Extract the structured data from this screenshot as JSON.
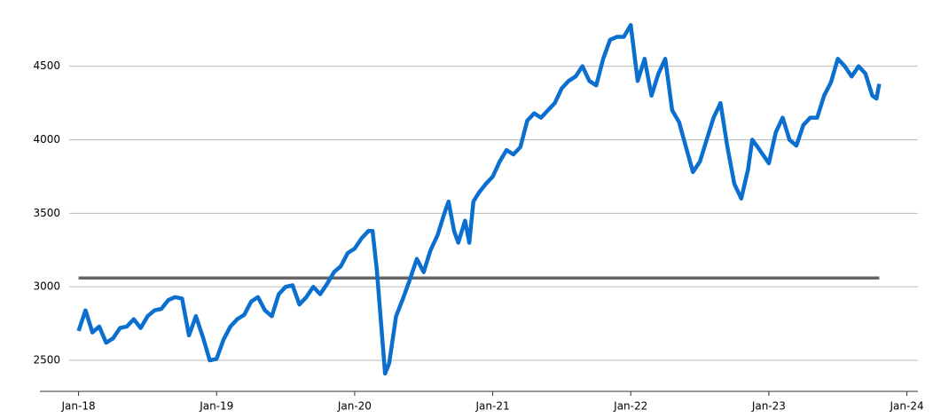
{
  "chart_data": {
    "type": "line",
    "x": [
      2018.0,
      2018.05,
      2018.1,
      2018.15,
      2018.2,
      2018.25,
      2018.3,
      2018.35,
      2018.4,
      2018.45,
      2018.5,
      2018.55,
      2018.6,
      2018.65,
      2018.7,
      2018.75,
      2018.8,
      2018.85,
      2018.9,
      2018.95,
      2019.0,
      2019.05,
      2019.1,
      2019.15,
      2019.2,
      2019.25,
      2019.3,
      2019.35,
      2019.4,
      2019.45,
      2019.5,
      2019.55,
      2019.6,
      2019.65,
      2019.7,
      2019.75,
      2019.8,
      2019.85,
      2019.9,
      2019.95,
      2020.0,
      2020.05,
      2020.1,
      2020.13,
      2020.16,
      2020.22,
      2020.25,
      2020.3,
      2020.35,
      2020.4,
      2020.45,
      2020.5,
      2020.55,
      2020.6,
      2020.65,
      2020.68,
      2020.72,
      2020.75,
      2020.8,
      2020.83,
      2020.86,
      2020.9,
      2020.95,
      2021.0,
      2021.05,
      2021.1,
      2021.15,
      2021.2,
      2021.25,
      2021.3,
      2021.35,
      2021.4,
      2021.45,
      2021.5,
      2021.55,
      2021.6,
      2021.65,
      2021.7,
      2021.75,
      2021.8,
      2021.85,
      2021.9,
      2021.95,
      2022.0,
      2022.05,
      2022.1,
      2022.15,
      2022.2,
      2022.25,
      2022.3,
      2022.35,
      2022.4,
      2022.45,
      2022.5,
      2022.55,
      2022.6,
      2022.65,
      2022.7,
      2022.75,
      2022.8,
      2022.85,
      2022.88,
      2022.92,
      2023.0,
      2023.05,
      2023.1,
      2023.15,
      2023.2,
      2023.25,
      2023.3,
      2023.35,
      2023.4,
      2023.45,
      2023.5,
      2023.55,
      2023.6,
      2023.65,
      2023.7,
      2023.75,
      2023.78,
      2023.8
    ],
    "series": [
      {
        "color": "#0a6fcf",
        "values": [
          2700,
          2840,
          2690,
          2730,
          2620,
          2650,
          2720,
          2730,
          2780,
          2720,
          2800,
          2840,
          2850,
          2910,
          2930,
          2920,
          2670,
          2800,
          2660,
          2500,
          2510,
          2640,
          2730,
          2780,
          2810,
          2900,
          2930,
          2840,
          2800,
          2950,
          3000,
          3010,
          2880,
          2930,
          3000,
          2950,
          3020,
          3100,
          3140,
          3230,
          3260,
          3330,
          3380,
          3380,
          3120,
          2410,
          2480,
          2800,
          2920,
          3050,
          3190,
          3100,
          3250,
          3350,
          3500,
          3580,
          3380,
          3300,
          3450,
          3300,
          3580,
          3640,
          3700,
          3750,
          3850,
          3930,
          3900,
          3950,
          4130,
          4180,
          4150,
          4200,
          4250,
          4350,
          4400,
          4430,
          4500,
          4400,
          4370,
          4550,
          4680,
          4700,
          4700,
          4780,
          4400,
          4550,
          4300,
          4450,
          4550,
          4200,
          4120,
          3950,
          3780,
          3850,
          4000,
          4150,
          4250,
          3950,
          3700,
          3600,
          3800,
          4000,
          3950,
          3840,
          4050,
          4150,
          4000,
          3960,
          4100,
          4150,
          4150,
          4300,
          4390,
          4550,
          4500,
          4430,
          4500,
          4450,
          4300,
          4280,
          4380
        ]
      },
      {
        "color": "#666666",
        "x": [
          2018.0,
          2023.8
        ],
        "values": [
          3060,
          3060
        ]
      }
    ],
    "xlim": [
      2017.72,
      2024.08
    ],
    "xticks": [
      {
        "value": 2018,
        "label": "Jan-18"
      },
      {
        "value": 2019,
        "label": "Jan-19"
      },
      {
        "value": 2020,
        "label": "Jan-20"
      },
      {
        "value": 2021,
        "label": "Jan-21"
      },
      {
        "value": 2022,
        "label": "Jan-22"
      },
      {
        "value": 2023,
        "label": "Jan-23"
      },
      {
        "value": 2024,
        "label": "Jan-24"
      }
    ],
    "ylim": [
      2289,
      4890
    ],
    "yticks": [
      2500,
      3000,
      3500,
      4000,
      4500
    ],
    "grid": true
  }
}
